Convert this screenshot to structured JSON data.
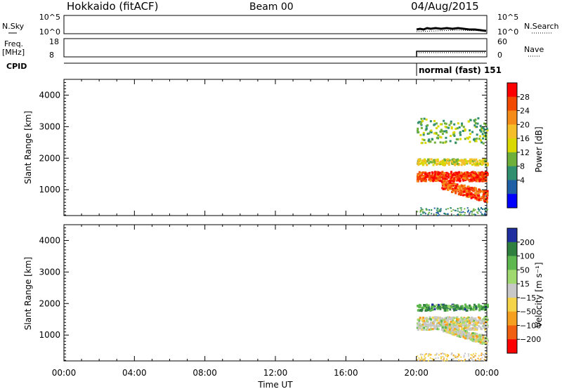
{
  "header": {
    "station": "Hokkaido (fitACF)",
    "beam": "Beam 00",
    "date": "04/Aug/2015"
  },
  "nsky_panel": {
    "left_label": "N.Sky",
    "left_ticks": [
      "10^5",
      "10^0"
    ],
    "right_ticks": [
      "10^5",
      "10^0"
    ],
    "right_label": "N.Search"
  },
  "freq_panel": {
    "left_label_1": "Freq.",
    "left_label_2": "[MHz]",
    "left_ticks": [
      "18",
      "8"
    ],
    "right_ticks": [
      "60",
      "0"
    ],
    "right_label": "Nave"
  },
  "cpid": {
    "label": "CPID",
    "mode_text": "normal (fast) 151"
  },
  "chart_data": [
    {
      "type": "heatmap",
      "name_hint": "power",
      "ylabel": "Slant Range [km]",
      "y_ticks": [
        "4000",
        "3000",
        "2000",
        "1000"
      ],
      "ylim": [
        180,
        4500
      ],
      "x_ticks": [
        "00:00",
        "04:00",
        "08:00",
        "12:00",
        "16:00",
        "20:00",
        "00:00"
      ],
      "xlim_hours": [
        0,
        24
      ],
      "colorbar_label": "Power [dB]",
      "colorbar_ticks": [
        "28",
        "24",
        "20",
        "16",
        "12",
        "8",
        "4"
      ],
      "colorbar_colors": [
        "#ff0000",
        "#f24a00",
        "#f58c1a",
        "#f5bf2a",
        "#d9d900",
        "#6fb03a",
        "#2f8f6f",
        "#1f5fa5",
        "#0000ff"
      ],
      "data_present_hours": [
        20,
        24
      ],
      "features": [
        {
          "label": "strong echo band",
          "range_km": [
            1300,
            1600
          ],
          "db": 28
        },
        {
          "label": "descending strong echo",
          "range_km": [
            600,
            1000
          ],
          "db": 26
        },
        {
          "label": "moderate echoes",
          "range_km": [
            1800,
            2000
          ],
          "db": 16
        },
        {
          "label": "scattered weak echoes",
          "range_km": [
            2500,
            3300
          ],
          "db": 12
        }
      ]
    },
    {
      "type": "heatmap",
      "name_hint": "velocity",
      "ylabel": "Slant Range [km]",
      "y_ticks": [
        "4000",
        "3000",
        "2000",
        "1000"
      ],
      "ylim": [
        180,
        4500
      ],
      "x_ticks": [
        "00:00",
        "04:00",
        "08:00",
        "12:00",
        "16:00",
        "20:00",
        "00:00"
      ],
      "xlim_hours": [
        0,
        24
      ],
      "xlabel": "Time UT",
      "colorbar_label": "Velocity [m s⁻¹]",
      "colorbar_ticks": [
        "200",
        "100",
        "50",
        "15",
        "−15",
        "−50",
        "−100",
        "−200"
      ],
      "colorbar_colors": [
        "#1f2f9f",
        "#2f7f3f",
        "#5fb84f",
        "#9fd96f",
        "#c8c8c8",
        "#f5d44a",
        "#f5a020",
        "#f06010",
        "#ff0000"
      ],
      "data_present_hours": [
        20,
        24
      ],
      "features": [
        {
          "label": "ground scatter (grey)",
          "range_km": [
            1200,
            1600
          ],
          "velocity_ms": 0
        },
        {
          "label": "descending ground scatter",
          "range_km": [
            700,
            1000
          ],
          "velocity_ms": 0
        },
        {
          "label": "ionospheric echoes",
          "range_km": [
            1800,
            2000
          ],
          "velocity_ms": 50
        }
      ]
    }
  ]
}
